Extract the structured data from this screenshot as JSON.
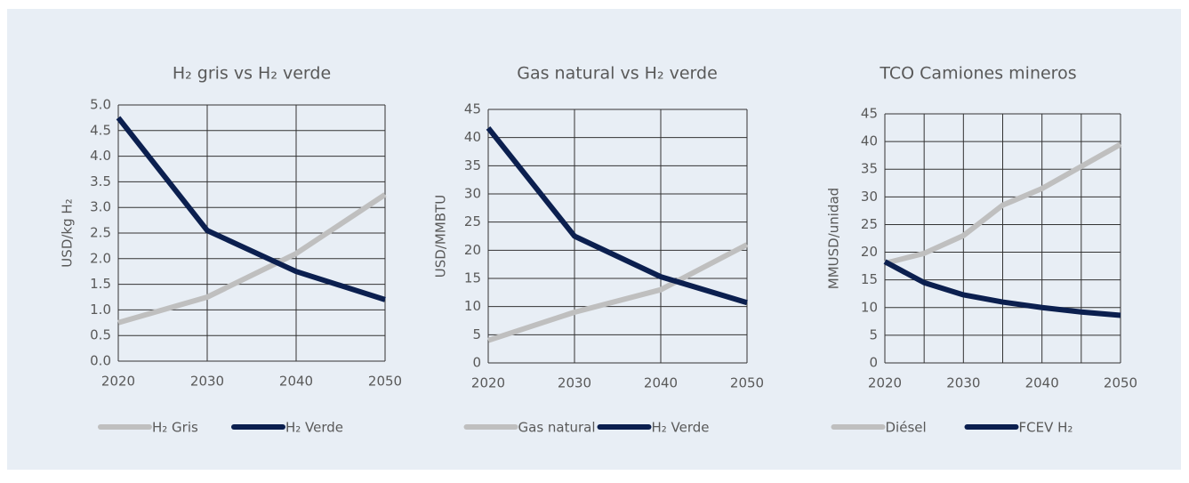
{
  "chart_data": [
    {
      "type": "line",
      "title": "H₂ gris vs H₂ verde",
      "y_label": "USD/kg H₂",
      "x": [
        2020,
        2030,
        2040,
        2050
      ],
      "xlim": [
        2020,
        2050
      ],
      "xticks": [
        2020,
        2030,
        2040,
        2050
      ],
      "ylim": [
        0,
        5
      ],
      "yticks": [
        {
          "value": 0,
          "label": "0.0"
        },
        0.5,
        {
          "value": 1,
          "label": "1.0"
        },
        1.5,
        {
          "value": 2,
          "label": "2.0"
        },
        2.5,
        {
          "value": 3,
          "label": "3.0"
        },
        3.5,
        {
          "value": 4,
          "label": "4.0"
        },
        4.5,
        {
          "value": 5,
          "label": "5.0"
        }
      ],
      "grid": true,
      "legend": "bottom",
      "series": [
        {
          "name": "H₂ Gris",
          "color": "#bfbfbf",
          "values": [
            0.75,
            1.25,
            2.1,
            3.25
          ]
        },
        {
          "name": "H₂ Verde",
          "color": "#0b1f4f",
          "values": [
            4.75,
            2.55,
            1.75,
            1.2
          ]
        }
      ]
    },
    {
      "type": "line",
      "title": "Gas natural vs H₂ verde",
      "y_label": "USD/MMBTU",
      "x": [
        2020,
        2030,
        2040,
        2050
      ],
      "xlim": [
        2020,
        2050
      ],
      "xticks": [
        2020,
        2030,
        2040,
        2050
      ],
      "ylim": [
        0,
        45
      ],
      "yticks": [
        0,
        5,
        10,
        15,
        20,
        25,
        30,
        35,
        40,
        45
      ],
      "grid": true,
      "legend": "bottom",
      "series": [
        {
          "name": "Gas natural",
          "color": "#bfbfbf",
          "values": [
            4,
            9,
            13,
            21
          ]
        },
        {
          "name": "H₂ Verde",
          "color": "#0b1f4f",
          "values": [
            41.7,
            22.5,
            15.3,
            10.7
          ]
        }
      ]
    },
    {
      "type": "line",
      "title": "TCO Camiones mineros",
      "y_label": "MMUSD/unidad",
      "x": [
        2020,
        2025,
        2030,
        2035,
        2040,
        2045,
        2050
      ],
      "xlim": [
        2020,
        2050
      ],
      "xticks": [
        2020,
        2030,
        2040,
        2050
      ],
      "xminor": [
        2025,
        2035,
        2045
      ],
      "ylim": [
        0,
        45
      ],
      "yticks": [
        0,
        5,
        10,
        15,
        20,
        25,
        30,
        35,
        40,
        45
      ],
      "grid": true,
      "legend": "bottom",
      "series": [
        {
          "name": "Diésel",
          "color": "#bfbfbf",
          "values": [
            18,
            19.8,
            23,
            28.5,
            31.5,
            35.5,
            39.5
          ]
        },
        {
          "name": "FCEV H₂",
          "color": "#0b1f4f",
          "values": [
            18.3,
            14.5,
            12.3,
            11,
            10,
            9.2,
            8.6
          ]
        }
      ]
    }
  ]
}
